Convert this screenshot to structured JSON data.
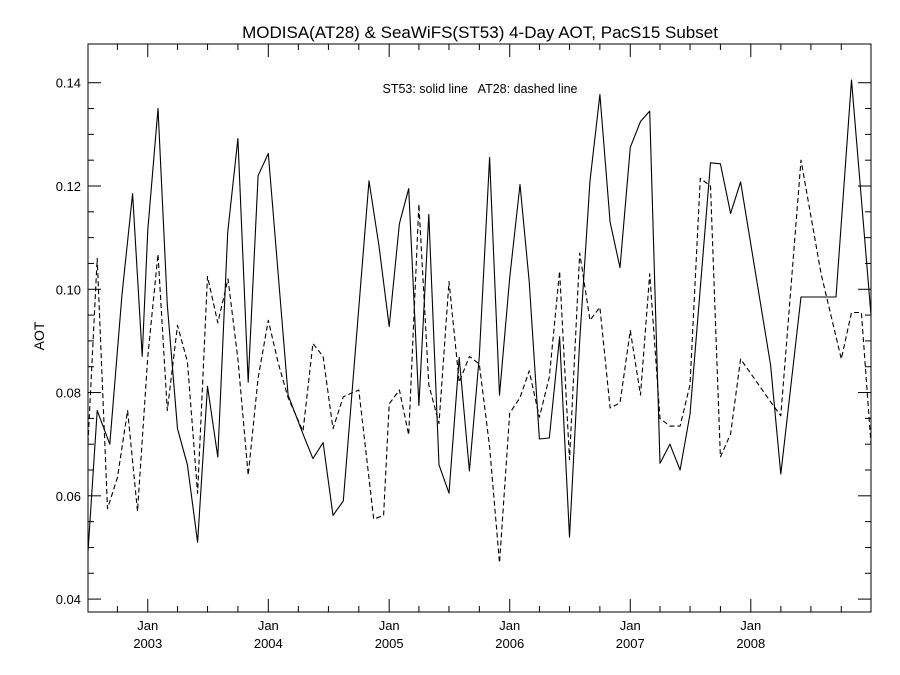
{
  "chart_data": {
    "type": "line",
    "title": "MODISA(AT28) & SeaWiFS(ST53) 4-Day AOT, PacS15 Subset",
    "annotation": "ST53: solid line   AT28: dashed line",
    "xlabel": "",
    "ylabel": "AOT",
    "xlim": [
      "2002-07-04",
      "2008-12-30"
    ],
    "ylim": [
      0.0375,
      0.1475
    ],
    "yticks": [
      "0.04",
      "0.06",
      "0.08",
      "0.10",
      "0.12",
      "0.14"
    ],
    "xticks": [
      {
        "date": "2003-01-01",
        "month": "Jan",
        "year": "2003"
      },
      {
        "date": "2004-01-01",
        "month": "Jan",
        "year": "2004"
      },
      {
        "date": "2005-01-01",
        "month": "Jan",
        "year": "2005"
      },
      {
        "date": "2006-01-01",
        "month": "Jan",
        "year": "2006"
      },
      {
        "date": "2007-01-01",
        "month": "Jan",
        "year": "2007"
      },
      {
        "date": "2008-01-01",
        "month": "Jan",
        "year": "2008"
      }
    ],
    "grid": false,
    "series": [
      {
        "name": "ST53",
        "style": "solid",
        "color": "#000000",
        "points": [
          [
            "2002-07-04",
            0.0492
          ],
          [
            "2002-08-01",
            0.0765
          ],
          [
            "2002-09-08",
            0.07
          ],
          [
            "2002-10-15",
            0.099
          ],
          [
            "2002-11-16",
            0.1185
          ],
          [
            "2002-12-15",
            0.087
          ],
          [
            "2003-01-01",
            0.1115
          ],
          [
            "2003-02-01",
            0.135
          ],
          [
            "2003-03-01",
            0.097
          ],
          [
            "2003-04-01",
            0.073
          ],
          [
            "2003-05-01",
            0.066
          ],
          [
            "2003-06-01",
            0.051
          ],
          [
            "2003-07-01",
            0.0812
          ],
          [
            "2003-08-01",
            0.0675
          ],
          [
            "2003-08-31",
            0.111
          ],
          [
            "2003-10-01",
            0.1292
          ],
          [
            "2003-11-01",
            0.082
          ],
          [
            "2003-12-01",
            0.122
          ],
          [
            "2004-01-01",
            0.1263
          ],
          [
            "2004-03-01",
            0.0795
          ],
          [
            "2004-04-15",
            0.072
          ],
          [
            "2004-05-15",
            0.0672
          ],
          [
            "2004-06-15",
            0.0703
          ],
          [
            "2004-07-15",
            0.0562
          ],
          [
            "2004-08-15",
            0.059
          ],
          [
            "2004-11-01",
            0.121
          ],
          [
            "2004-12-01",
            0.1085
          ],
          [
            "2005-01-01",
            0.0928
          ],
          [
            "2005-02-01",
            0.1127
          ],
          [
            "2005-03-01",
            0.1195
          ],
          [
            "2005-04-01",
            0.0775
          ],
          [
            "2005-05-01",
            0.1145
          ],
          [
            "2005-06-01",
            0.066
          ],
          [
            "2005-07-01",
            0.0605
          ],
          [
            "2005-08-01",
            0.0868
          ],
          [
            "2005-09-01",
            0.0648
          ],
          [
            "2005-10-01",
            0.087
          ],
          [
            "2005-11-01",
            0.1255
          ],
          [
            "2005-12-01",
            0.0795
          ],
          [
            "2006-01-01",
            0.1022
          ],
          [
            "2006-02-01",
            0.1203
          ],
          [
            "2006-03-01",
            0.1015
          ],
          [
            "2006-04-01",
            0.071
          ],
          [
            "2006-05-01",
            0.0712
          ],
          [
            "2006-06-01",
            0.0908
          ],
          [
            "2006-07-01",
            0.052
          ],
          [
            "2006-08-01",
            0.09
          ],
          [
            "2006-09-01",
            0.121
          ],
          [
            "2006-10-01",
            0.1377
          ],
          [
            "2006-11-01",
            0.113
          ],
          [
            "2006-12-01",
            0.1042
          ],
          [
            "2007-01-01",
            0.1275
          ],
          [
            "2007-02-01",
            0.1325
          ],
          [
            "2007-03-01",
            0.1345
          ],
          [
            "2007-04-01",
            0.0663
          ],
          [
            "2007-05-01",
            0.07
          ],
          [
            "2007-06-01",
            0.065
          ],
          [
            "2007-07-01",
            0.0758
          ],
          [
            "2007-09-01",
            0.1245
          ],
          [
            "2007-10-01",
            0.1243
          ],
          [
            "2007-11-01",
            0.1147
          ],
          [
            "2007-12-01",
            0.1208
          ],
          [
            "2008-03-01",
            0.0853
          ],
          [
            "2008-04-01",
            0.0642
          ],
          [
            "2008-06-01",
            0.0985
          ],
          [
            "2008-09-15",
            0.0985
          ],
          [
            "2008-11-01",
            0.1405
          ],
          [
            "2008-12-30",
            0.095
          ]
        ]
      },
      {
        "name": "AT28",
        "style": "dashed",
        "color": "#000000",
        "points": [
          [
            "2002-07-04",
            0.0702
          ],
          [
            "2002-08-01",
            0.106
          ],
          [
            "2002-09-01",
            0.0575
          ],
          [
            "2002-10-01",
            0.0635
          ],
          [
            "2002-11-01",
            0.0765
          ],
          [
            "2002-12-01",
            0.057
          ],
          [
            "2003-01-01",
            0.087
          ],
          [
            "2003-02-01",
            0.1068
          ],
          [
            "2003-03-01",
            0.0765
          ],
          [
            "2003-04-01",
            0.093
          ],
          [
            "2003-05-01",
            0.086
          ],
          [
            "2003-06-01",
            0.0605
          ],
          [
            "2003-07-01",
            0.1025
          ],
          [
            "2003-08-01",
            0.0935
          ],
          [
            "2003-09-01",
            0.102
          ],
          [
            "2003-10-01",
            0.0865
          ],
          [
            "2003-11-01",
            0.064
          ],
          [
            "2003-12-01",
            0.0828
          ],
          [
            "2004-01-01",
            0.094
          ],
          [
            "2004-02-01",
            0.0855
          ],
          [
            "2004-03-01",
            0.079
          ],
          [
            "2004-04-15",
            0.0725
          ],
          [
            "2004-05-15",
            0.0895
          ],
          [
            "2004-06-15",
            0.087
          ],
          [
            "2004-07-15",
            0.073
          ],
          [
            "2004-08-15",
            0.0792
          ],
          [
            "2004-10-01",
            0.0805
          ],
          [
            "2004-11-15",
            0.0555
          ],
          [
            "2004-12-15",
            0.0562
          ],
          [
            "2005-01-01",
            0.0778
          ],
          [
            "2005-02-01",
            0.0805
          ],
          [
            "2005-03-01",
            0.0718
          ],
          [
            "2005-04-01",
            0.1165
          ],
          [
            "2005-05-01",
            0.0815
          ],
          [
            "2005-06-01",
            0.074
          ],
          [
            "2005-07-01",
            0.1015
          ],
          [
            "2005-08-01",
            0.082
          ],
          [
            "2005-09-01",
            0.087
          ],
          [
            "2005-10-01",
            0.0855
          ],
          [
            "2005-11-01",
            0.0695
          ],
          [
            "2005-12-01",
            0.047
          ],
          [
            "2006-01-01",
            0.076
          ],
          [
            "2006-02-01",
            0.079
          ],
          [
            "2006-03-01",
            0.0842
          ],
          [
            "2006-04-01",
            0.0752
          ],
          [
            "2006-05-01",
            0.083
          ],
          [
            "2006-06-01",
            0.1035
          ],
          [
            "2006-07-01",
            0.067
          ],
          [
            "2006-08-01",
            0.107
          ],
          [
            "2006-09-01",
            0.094
          ],
          [
            "2006-10-01",
            0.0965
          ],
          [
            "2006-11-01",
            0.077
          ],
          [
            "2006-12-01",
            0.078
          ],
          [
            "2007-01-01",
            0.092
          ],
          [
            "2007-02-01",
            0.0795
          ],
          [
            "2007-03-01",
            0.103
          ],
          [
            "2007-04-01",
            0.075
          ],
          [
            "2007-05-01",
            0.0735
          ],
          [
            "2007-06-01",
            0.0735
          ],
          [
            "2007-07-01",
            0.0815
          ],
          [
            "2007-08-01",
            0.1215
          ],
          [
            "2007-09-01",
            0.12
          ],
          [
            "2007-10-01",
            0.0675
          ],
          [
            "2007-11-01",
            0.072
          ],
          [
            "2007-12-01",
            0.0865
          ],
          [
            "2008-03-01",
            0.0782
          ],
          [
            "2008-04-01",
            0.0755
          ],
          [
            "2008-06-01",
            0.125
          ],
          [
            "2008-08-01",
            0.103
          ],
          [
            "2008-10-01",
            0.0865
          ],
          [
            "2008-11-01",
            0.0955
          ],
          [
            "2008-12-01",
            0.0955
          ],
          [
            "2008-12-30",
            0.07
          ]
        ]
      }
    ]
  }
}
